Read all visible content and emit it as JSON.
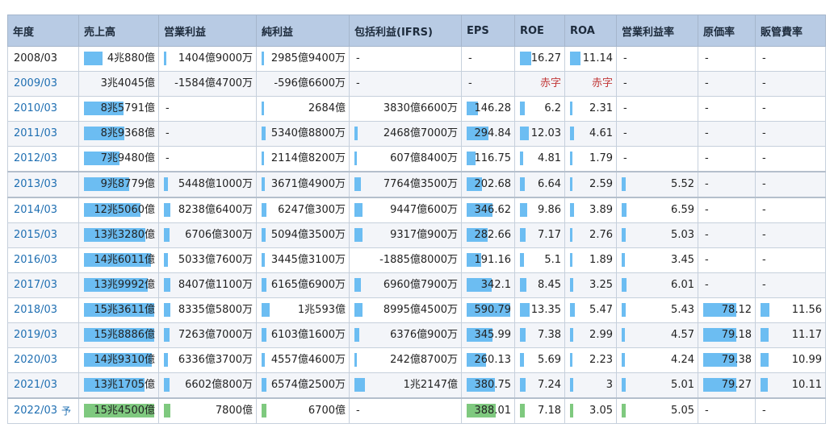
{
  "table": {
    "headers": [
      "年度",
      "売上高",
      "営業利益",
      "純利益",
      "包括利益(IFRS)",
      "EPS",
      "ROE",
      "ROA",
      "営業利益率",
      "原価率",
      "販管費率"
    ],
    "rows": [
      {
        "year": "2008/03",
        "link": false,
        "forecast": false,
        "cells": [
          "4兆880億",
          "1404億9000万",
          "2985億9400万",
          "-",
          "-",
          "16.27",
          "11.14",
          "-",
          "-",
          "-"
        ],
        "bars": [
          0.27,
          0.02,
          0.03,
          null,
          null,
          0.28,
          0.25,
          null,
          null,
          null
        ]
      },
      {
        "year": "2009/03",
        "link": true,
        "forecast": false,
        "cells": [
          "3兆4045億",
          "-1584億4700万",
          "-596億6600万",
          "-",
          "-",
          "赤字",
          "赤字",
          "-",
          "-",
          "-"
        ],
        "bars": [
          null,
          null,
          null,
          null,
          null,
          null,
          null,
          null,
          null,
          null
        ]
      },
      {
        "year": "2010/03",
        "link": true,
        "forecast": false,
        "cells": [
          "8兆5791億",
          "-",
          "2684億",
          "3830億6600万",
          "146.28",
          "6.2",
          "2.31",
          "-",
          "-",
          "-"
        ],
        "bars": [
          0.56,
          null,
          0.03,
          null,
          0.26,
          0.11,
          0.05,
          null,
          null,
          null
        ]
      },
      {
        "year": "2011/03",
        "link": true,
        "forecast": false,
        "cells": [
          "8兆9368億",
          "-",
          "5340億8800万",
          "2468億7000万",
          "294.84",
          "12.03",
          "4.61",
          "-",
          "-",
          "-"
        ],
        "bars": [
          0.58,
          null,
          0.05,
          0.03,
          0.5,
          0.21,
          0.1,
          null,
          null,
          null
        ]
      },
      {
        "year": "2012/03",
        "link": true,
        "forecast": false,
        "cells": [
          "7兆9480億",
          "-",
          "2114億8200万",
          "607億8400万",
          "116.75",
          "4.81",
          "1.79",
          "-",
          "-",
          "-"
        ],
        "bars": [
          0.5,
          null,
          0.03,
          0.01,
          0.2,
          0.08,
          0.04,
          null,
          null,
          null
        ]
      },
      {
        "year": "2013/03",
        "link": true,
        "forecast": false,
        "cells": [
          "9兆8779億",
          "5448億1000万",
          "3671億4900万",
          "7764億3500万",
          "202.68",
          "6.64",
          "2.59",
          "5.52",
          "-",
          "-"
        ],
        "bars": [
          0.64,
          0.05,
          0.04,
          0.06,
          0.35,
          0.12,
          0.06,
          0.06,
          null,
          null
        ]
      },
      {
        "year": "2014/03",
        "link": true,
        "forecast": false,
        "cells": [
          "12兆5060億",
          "8238億6400万",
          "6247億300万",
          "9447億600万",
          "346.62",
          "9.86",
          "3.89",
          "6.59",
          "-",
          "-"
        ],
        "bars": [
          0.81,
          0.07,
          0.06,
          0.08,
          0.59,
          0.17,
          0.09,
          0.07,
          null,
          null
        ]
      },
      {
        "year": "2015/03",
        "link": true,
        "forecast": false,
        "cells": [
          "13兆3280億",
          "6706億300万",
          "5094億3500万",
          "9317億900万",
          "282.66",
          "7.17",
          "2.76",
          "5.03",
          "-",
          "-"
        ],
        "bars": [
          0.87,
          0.06,
          0.05,
          0.08,
          0.48,
          0.13,
          0.06,
          0.06,
          null,
          null
        ]
      },
      {
        "year": "2016/03",
        "link": true,
        "forecast": false,
        "cells": [
          "14兆6011億",
          "5033億7600万",
          "3445億3100万",
          "-1885億8000万",
          "191.16",
          "5.1",
          "1.89",
          "3.45",
          "-",
          "-"
        ],
        "bars": [
          0.95,
          0.05,
          0.04,
          null,
          0.33,
          0.09,
          0.04,
          0.04,
          null,
          null
        ]
      },
      {
        "year": "2017/03",
        "link": true,
        "forecast": false,
        "cells": [
          "13兆9992億",
          "8407億1100万",
          "6165億6900万",
          "6960億7900万",
          "342.1",
          "8.45",
          "3.25",
          "6.01",
          "-",
          "-"
        ],
        "bars": [
          0.91,
          0.07,
          0.06,
          0.06,
          0.58,
          0.15,
          0.07,
          0.07,
          null,
          null
        ]
      },
      {
        "year": "2018/03",
        "link": true,
        "forecast": false,
        "cells": [
          "15兆3611億",
          "8335億5800万",
          "1兆593億",
          "8995億4500万",
          "590.79",
          "13.35",
          "5.47",
          "5.43",
          "78.12",
          "11.56"
        ],
        "bars": [
          1.0,
          0.07,
          0.1,
          0.08,
          1.0,
          0.23,
          0.12,
          0.06,
          0.69,
          0.14
        ]
      },
      {
        "year": "2019/03",
        "link": true,
        "forecast": false,
        "cells": [
          "15兆8886億",
          "7263億7000万",
          "6103億1600万",
          "6376億900万",
          "345.99",
          "7.38",
          "2.99",
          "4.57",
          "79.18",
          "11.17"
        ],
        "bars": [
          1.0,
          0.06,
          0.06,
          0.05,
          0.59,
          0.13,
          0.07,
          0.05,
          0.7,
          0.13
        ]
      },
      {
        "year": "2020/03",
        "link": true,
        "forecast": false,
        "cells": [
          "14兆9310億",
          "6336億3700万",
          "4557億4600万",
          "242億8700万",
          "260.13",
          "5.69",
          "2.23",
          "4.24",
          "79.38",
          "10.99"
        ],
        "bars": [
          0.97,
          0.05,
          0.04,
          0.01,
          0.44,
          0.1,
          0.05,
          0.05,
          0.71,
          0.13
        ]
      },
      {
        "year": "2021/03",
        "link": true,
        "forecast": false,
        "cells": [
          "13兆1705億",
          "6602億800万",
          "6574億2500万",
          "1兆2147億",
          "380.75",
          "7.24",
          "3",
          "5.01",
          "79.27",
          "10.11"
        ],
        "bars": [
          0.86,
          0.06,
          0.06,
          0.1,
          0.64,
          0.13,
          0.07,
          0.06,
          0.7,
          0.12
        ]
      },
      {
        "year": "2022/03",
        "link": true,
        "forecast": true,
        "forecast_mark": "予",
        "cells": [
          "15兆4500億",
          "7800億",
          "6700億",
          "-",
          "388.01",
          "7.18",
          "3.05",
          "5.05",
          "-",
          "-"
        ],
        "bars": [
          1.0,
          0.07,
          0.06,
          null,
          0.66,
          0.12,
          0.07,
          0.06,
          null,
          null
        ]
      }
    ]
  },
  "colors": {
    "bar": "#6cbdf2",
    "forecast_bar": "#7fc97f",
    "header": "#b8cbe4",
    "link": "#1f6fb2",
    "deficit": "#c23a3a"
  }
}
